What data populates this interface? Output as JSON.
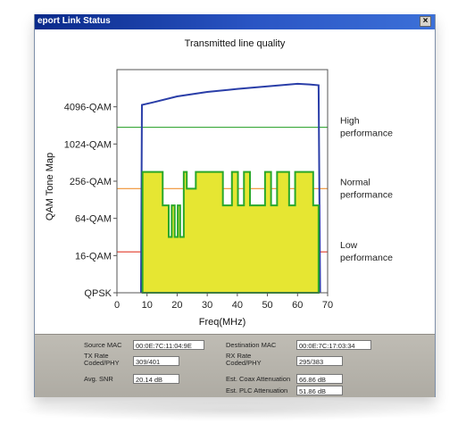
{
  "window": {
    "title": "eport Link Status",
    "close_glyph": "×"
  },
  "chart_data": {
    "type": "line",
    "title": "Transmitted line quality",
    "xlabel": "Freq(MHz)",
    "ylabel": "QAM Tone Map",
    "x_ticks": [
      0,
      10,
      20,
      30,
      40,
      50,
      60,
      70
    ],
    "y_ticks": [
      "QPSK",
      "16-QAM",
      "64-QAM",
      "256-QAM",
      "1024-QAM",
      "4096-QAM"
    ],
    "xlim": [
      0,
      70
    ],
    "ylim": [
      0,
      6
    ],
    "series": [
      {
        "type": "line",
        "color": "#2a3ea8",
        "x": [
          8,
          8.3,
          12,
          20,
          30,
          40,
          50,
          60,
          64,
          67,
          67.5
        ],
        "y": [
          0,
          5.05,
          5.12,
          5.28,
          5.4,
          5.48,
          5.55,
          5.62,
          5.6,
          5.58,
          0
        ]
      },
      {
        "type": "area",
        "color": "#2aa82a",
        "fill": "#e6e632",
        "x": [
          8.5,
          15,
          15.2,
          17,
          17.2,
          18,
          18.2,
          19,
          19.2,
          20,
          20.2,
          20.8,
          21,
          22,
          22.2,
          23,
          23.2,
          26,
          26.2,
          35,
          35.2,
          38,
          38.2,
          40,
          40.2,
          42,
          42.2,
          44,
          44.2,
          49,
          49.2,
          51,
          51.2,
          53,
          53.2,
          57,
          57.2,
          59,
          59.2,
          65,
          65.2,
          67
        ],
        "y": [
          3.25,
          3.25,
          2.35,
          2.35,
          1.5,
          1.5,
          2.35,
          2.35,
          1.5,
          1.5,
          2.35,
          2.35,
          1.5,
          1.5,
          3.25,
          3.25,
          2.8,
          2.8,
          3.25,
          3.25,
          2.35,
          2.35,
          3.25,
          3.25,
          2.35,
          2.35,
          3.25,
          3.25,
          2.35,
          2.35,
          3.25,
          3.25,
          2.35,
          2.35,
          3.25,
          3.25,
          2.35,
          2.35,
          3.25,
          3.25,
          2.35,
          2.35
        ]
      }
    ],
    "thresholds": [
      {
        "label": "High performance",
        "y": 4.45,
        "color": "#3aa83a"
      },
      {
        "label": "Normal performance",
        "y": 2.8,
        "color": "#f09030"
      },
      {
        "label": "Low performance",
        "y": 1.1,
        "color": "#e23a2a"
      }
    ],
    "grid": false
  },
  "details": {
    "source_mac_label": "Source MAC",
    "source_mac": "00:0E:7C:11:04:9E",
    "dest_mac_label": "Destination MAC",
    "dest_mac": "00:0E:7C:17:03:34",
    "tx_rate_label": "TX Rate Coded/PHY",
    "tx_rate": "309/401",
    "rx_rate_label": "RX Rate Coded/PHY",
    "rx_rate": "295/383",
    "snr_label": "Avg. SNR",
    "snr": "20.14 dB",
    "coax_label": "Est. Coax Attenuation",
    "coax": "66.86 dB",
    "plc_label": "Est. PLC Attenuation",
    "plc": "51.86 dB"
  }
}
